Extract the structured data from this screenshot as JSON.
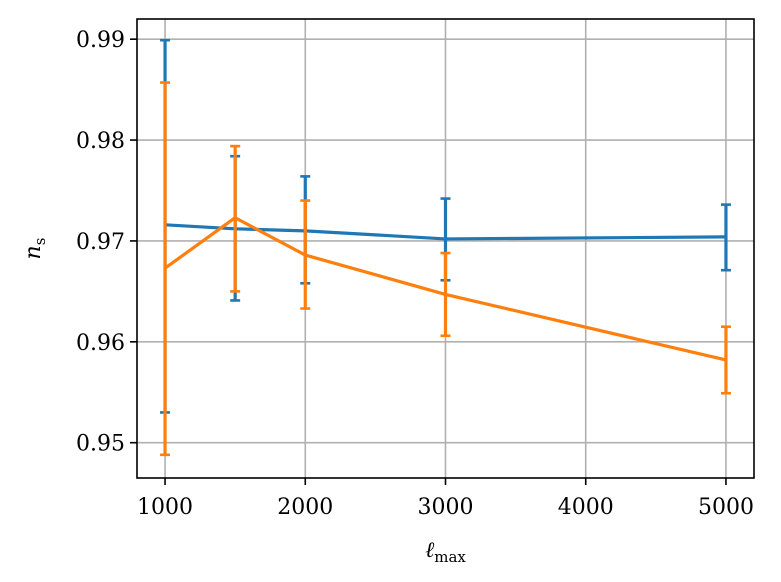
{
  "chart_data": {
    "type": "line",
    "title": "",
    "xlabel": "ℓ",
    "xlabel_sub": "max",
    "ylabel": "n",
    "ylabel_sub": "s",
    "xlim": [
      800,
      5200
    ],
    "ylim": [
      0.9465,
      0.992
    ],
    "xticks": [
      1000,
      2000,
      3000,
      4000,
      5000
    ],
    "xtick_labels": [
      "1000",
      "2000",
      "3000",
      "4000",
      "5000"
    ],
    "yticks": [
      0.95,
      0.96,
      0.97,
      0.98,
      0.99
    ],
    "ytick_labels": [
      "0.95",
      "0.96",
      "0.97",
      "0.98",
      "0.99"
    ],
    "grid": true,
    "series": [
      {
        "color": "#1f77b4",
        "points": [
          {
            "x": 1000,
            "y": 0.9716,
            "lo": 0.953,
            "hi": 0.9899
          },
          {
            "x": 1500,
            "y": 0.9712,
            "lo": 0.9641,
            "hi": 0.9784
          },
          {
            "x": 2000,
            "y": 0.971,
            "lo": 0.9658,
            "hi": 0.9764
          },
          {
            "x": 3000,
            "y": 0.9702,
            "lo": 0.9661,
            "hi": 0.9742
          },
          {
            "x": 5000,
            "y": 0.9704,
            "lo": 0.9671,
            "hi": 0.9736
          }
        ]
      },
      {
        "color": "#ff7f0e",
        "points": [
          {
            "x": 1000,
            "y": 0.9673,
            "lo": 0.9488,
            "hi": 0.9857
          },
          {
            "x": 1500,
            "y": 0.9723,
            "lo": 0.965,
            "hi": 0.9794
          },
          {
            "x": 2000,
            "y": 0.9686,
            "lo": 0.9633,
            "hi": 0.974
          },
          {
            "x": 3000,
            "y": 0.9647,
            "lo": 0.9606,
            "hi": 0.9688
          },
          {
            "x": 5000,
            "y": 0.9582,
            "lo": 0.9549,
            "hi": 0.9615
          }
        ]
      }
    ]
  }
}
